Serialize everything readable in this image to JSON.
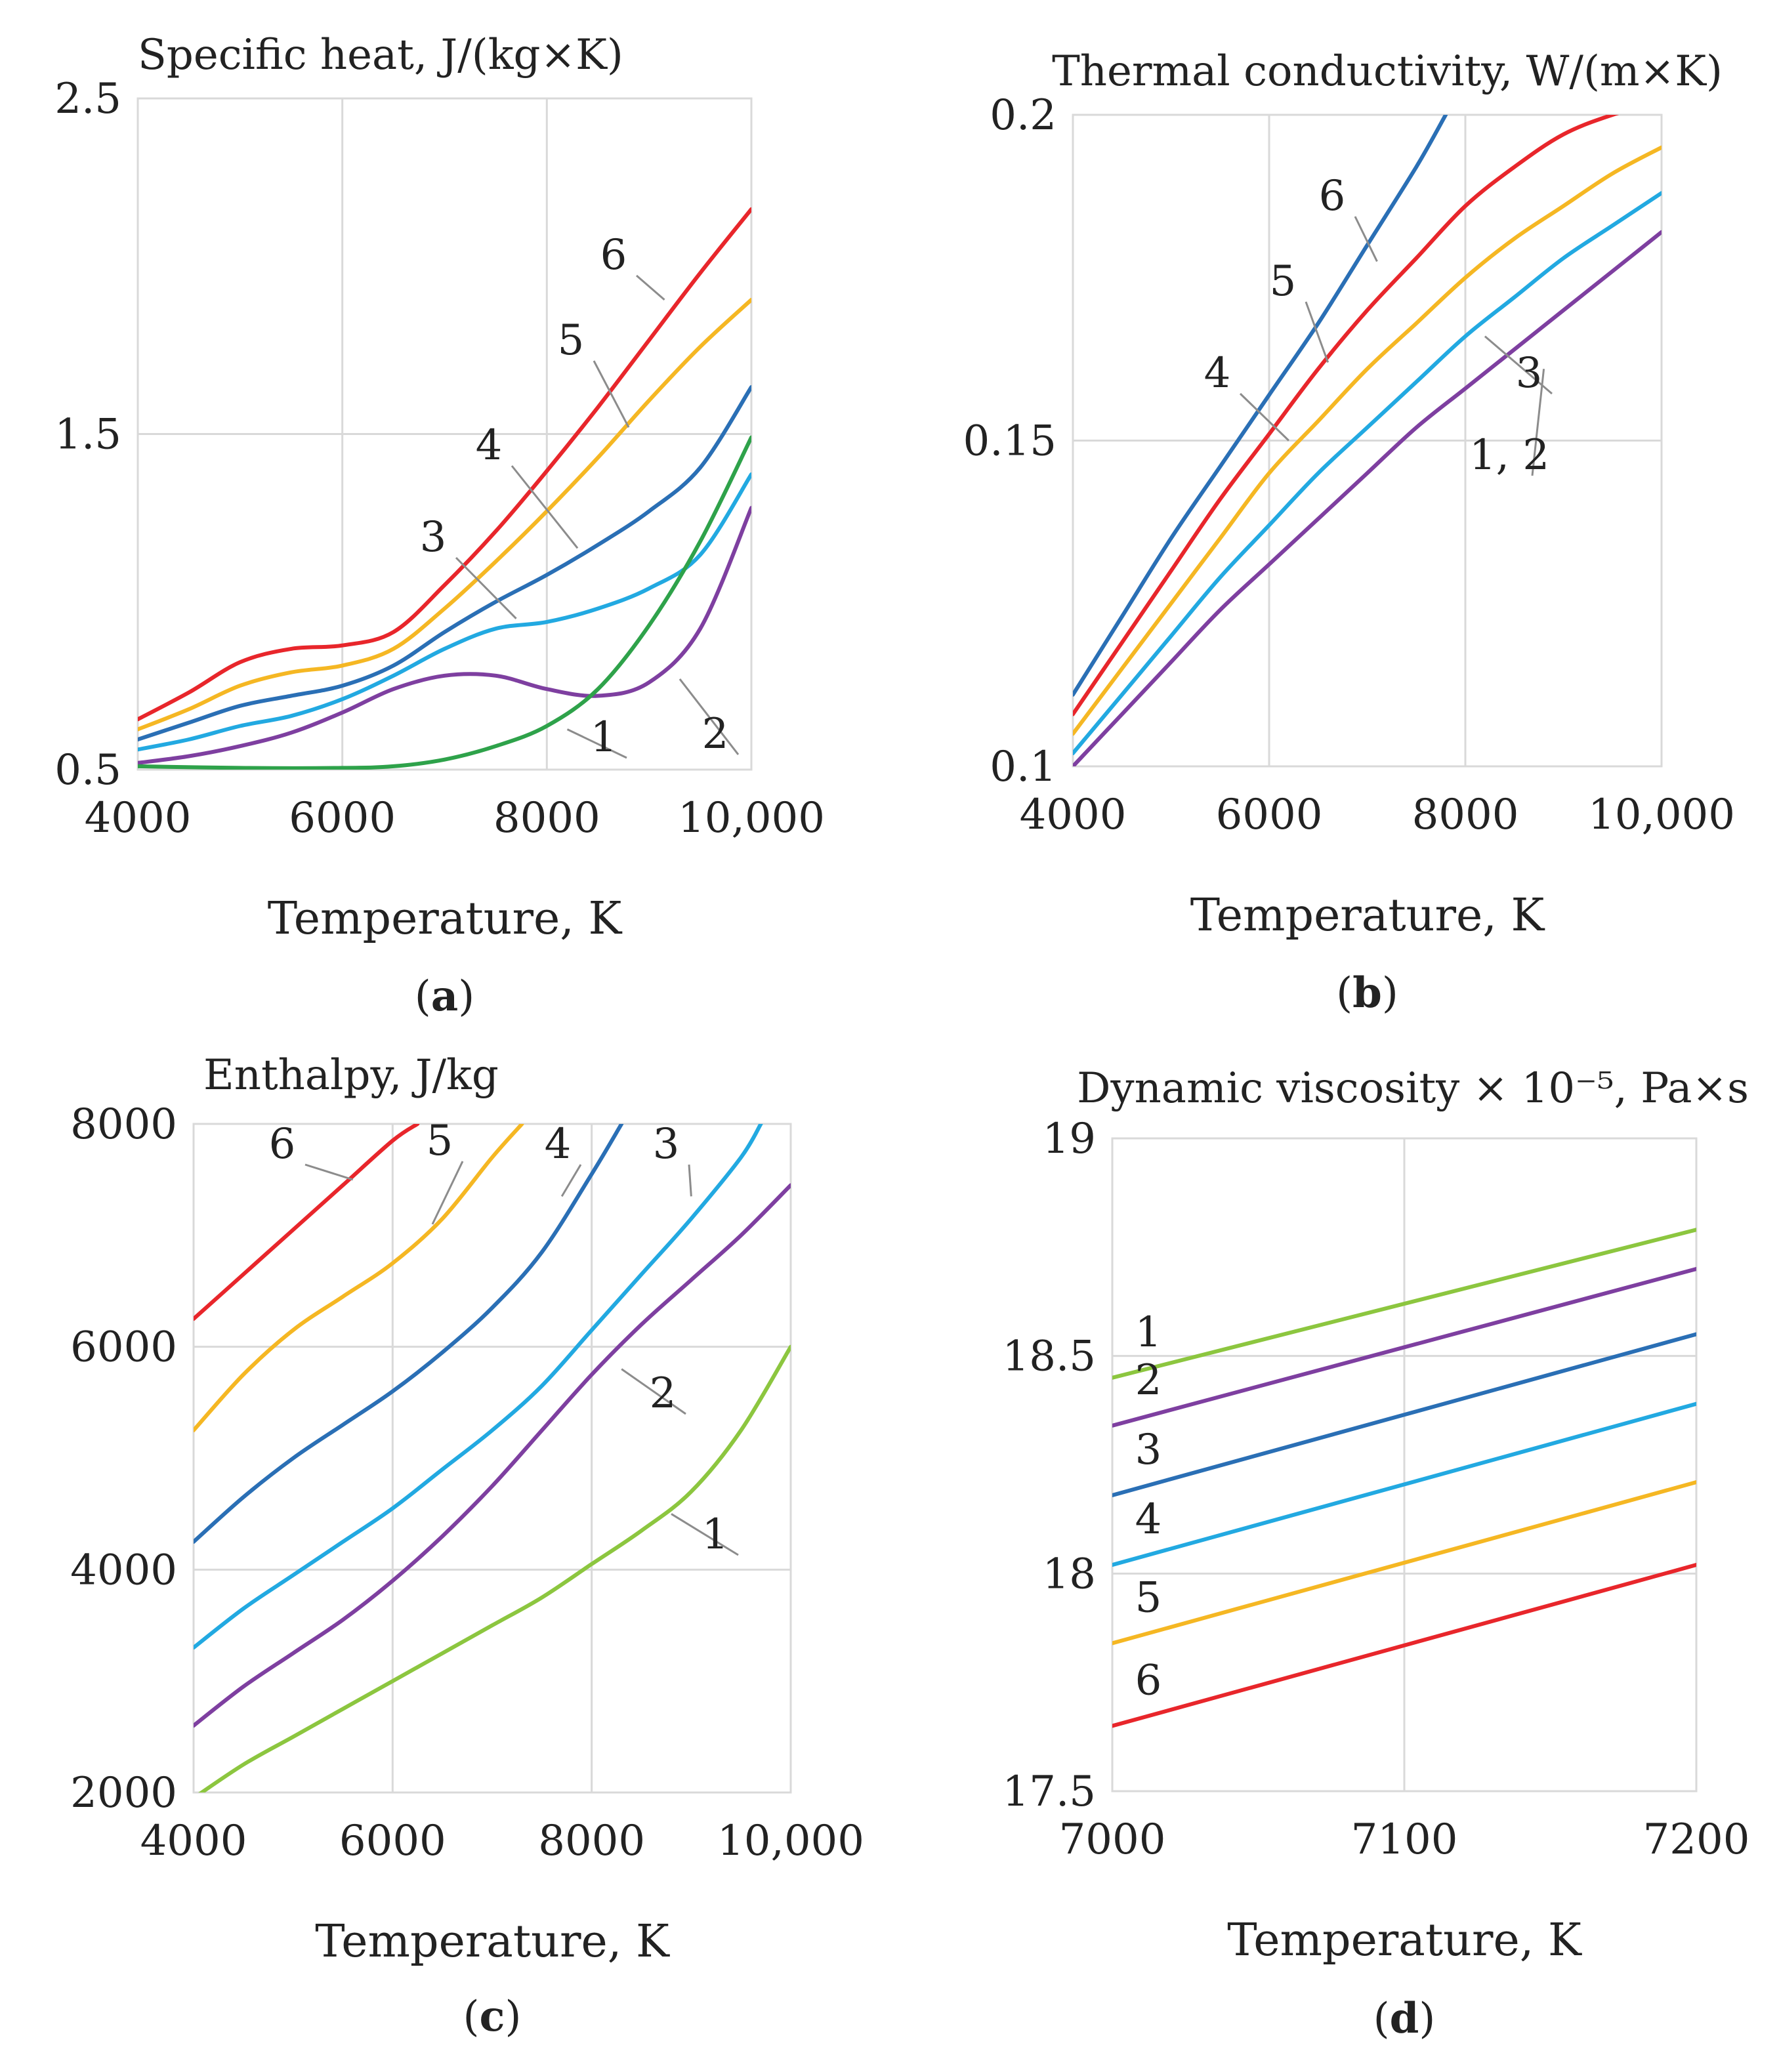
{
  "colors": {
    "red": "#e8262b",
    "yellow": "#f5b723",
    "dark_blue": "#2a6fb5",
    "light_blue": "#22a9e1",
    "purple": "#7e3fa0",
    "green": "#2ea24a",
    "light_green": "#8cc63f",
    "grid": "#d9d9d9"
  },
  "chart_data": [
    {
      "id": "a",
      "type": "line",
      "title": "Specific heat,   J/(kg×K)",
      "xlabel": "Temperature, K",
      "ylabel": "",
      "caption": {
        "open": "(",
        "letter": "a",
        "close": ")"
      },
      "xlim": [
        4000,
        10000
      ],
      "ylim": [
        0.5,
        2.5
      ],
      "xticks": [
        4000,
        6000,
        8000,
        10000
      ],
      "xtick_labels": [
        "4000",
        "6000",
        "8000",
        "10,000"
      ],
      "yticks": [
        0.5,
        1.5,
        2.5
      ],
      "ytick_labels": [
        "0.5",
        "1.5",
        "2.5"
      ],
      "grid": true,
      "series": [
        {
          "label": "6",
          "color": "#e8262b",
          "x": [
            4000,
            4500,
            5000,
            5500,
            6000,
            6500,
            7000,
            7500,
            8000,
            8500,
            9000,
            9500,
            10000
          ],
          "y": [
            0.65,
            0.73,
            0.82,
            0.86,
            0.87,
            0.91,
            1.05,
            1.21,
            1.39,
            1.58,
            1.78,
            1.98,
            2.17
          ]
        },
        {
          "label": "5",
          "color": "#f5b723",
          "x": [
            4000,
            4500,
            5000,
            5500,
            6000,
            6500,
            7000,
            7500,
            8000,
            8500,
            9000,
            9500,
            10000
          ],
          "y": [
            0.62,
            0.68,
            0.75,
            0.79,
            0.81,
            0.86,
            0.98,
            1.12,
            1.27,
            1.43,
            1.6,
            1.76,
            1.9
          ]
        },
        {
          "label": "4",
          "color": "#2a6fb5",
          "x": [
            4000,
            4500,
            5000,
            5500,
            6000,
            6500,
            7000,
            7500,
            8000,
            8500,
            9000,
            9500,
            10000
          ],
          "y": [
            0.59,
            0.64,
            0.69,
            0.72,
            0.75,
            0.81,
            0.91,
            1.0,
            1.08,
            1.17,
            1.27,
            1.4,
            1.64
          ]
        },
        {
          "label": "3",
          "color": "#22a9e1",
          "x": [
            4000,
            4500,
            5000,
            5500,
            6000,
            6500,
            7000,
            7500,
            8000,
            8500,
            9000,
            9500,
            10000
          ],
          "y": [
            0.56,
            0.59,
            0.63,
            0.66,
            0.71,
            0.78,
            0.86,
            0.92,
            0.94,
            0.98,
            1.04,
            1.14,
            1.38
          ]
        },
        {
          "label": "2",
          "color": "#7e3fa0",
          "x": [
            4000,
            4500,
            5000,
            5500,
            6000,
            6500,
            7000,
            7500,
            8000,
            8500,
            9000,
            9500,
            10000
          ],
          "y": [
            0.52,
            0.54,
            0.57,
            0.61,
            0.67,
            0.74,
            0.78,
            0.78,
            0.74,
            0.72,
            0.76,
            0.92,
            1.28
          ]
        },
        {
          "label": "1",
          "color": "#2ea24a",
          "x": [
            4000,
            5000,
            6000,
            6500,
            7000,
            7500,
            8000,
            8500,
            9000,
            9500,
            10000
          ],
          "y": [
            0.51,
            0.505,
            0.505,
            0.51,
            0.53,
            0.57,
            0.63,
            0.74,
            0.93,
            1.18,
            1.49
          ]
        }
      ],
      "annotations": [
        "6",
        "5",
        "4",
        "3",
        "2",
        "1"
      ]
    },
    {
      "id": "b",
      "type": "line",
      "title": "Thermal conductivity, W/(m×K)",
      "xlabel": "Temperature, K",
      "ylabel": "",
      "caption": {
        "open": "(",
        "letter": "b",
        "close": ")"
      },
      "xlim": [
        4000,
        10000
      ],
      "ylim": [
        0.1,
        0.2
      ],
      "xticks": [
        4000,
        6000,
        8000,
        10000
      ],
      "xtick_labels": [
        "4000",
        "6000",
        "8000",
        "10,000"
      ],
      "yticks": [
        0.1,
        0.15,
        0.2
      ],
      "ytick_labels": [
        "0.1",
        "0.15",
        "0.2"
      ],
      "grid": true,
      "series": [
        {
          "label": "6",
          "color": "#2a6fb5",
          "x": [
            4000,
            4500,
            5000,
            5500,
            6000,
            6500,
            7000,
            7500,
            7800
          ],
          "y": [
            0.111,
            0.123,
            0.135,
            0.146,
            0.157,
            0.168,
            0.18,
            0.192,
            0.2
          ]
        },
        {
          "label": "5",
          "color": "#e8262b",
          "x": [
            4000,
            4500,
            5000,
            5500,
            6000,
            6500,
            7000,
            7500,
            8000,
            8500,
            9000,
            9500,
            10000
          ],
          "y": [
            0.108,
            0.119,
            0.13,
            0.141,
            0.151,
            0.161,
            0.17,
            0.178,
            0.186,
            0.192,
            0.197,
            0.2,
            0.202
          ]
        },
        {
          "label": "4",
          "color": "#f5b723",
          "x": [
            4000,
            4500,
            5000,
            5500,
            6000,
            6500,
            7000,
            7500,
            8000,
            8500,
            9000,
            9500,
            10000
          ],
          "y": [
            0.105,
            0.115,
            0.125,
            0.135,
            0.145,
            0.153,
            0.161,
            0.168,
            0.175,
            0.181,
            0.186,
            0.191,
            0.195
          ]
        },
        {
          "label": "3",
          "color": "#22a9e1",
          "x": [
            4000,
            4500,
            5000,
            5500,
            6000,
            6500,
            7000,
            7500,
            8000,
            8500,
            9000,
            9500,
            10000
          ],
          "y": [
            0.102,
            0.111,
            0.12,
            0.129,
            0.137,
            0.145,
            0.152,
            0.159,
            0.166,
            0.172,
            0.178,
            0.183,
            0.188
          ]
        },
        {
          "label": "1, 2",
          "color": "#7e3fa0",
          "x": [
            4000,
            4500,
            5000,
            5500,
            6000,
            6500,
            7000,
            7500,
            8000,
            8500,
            9000,
            9500,
            10000
          ],
          "y": [
            0.1,
            0.108,
            0.116,
            0.124,
            0.131,
            0.138,
            0.145,
            0.152,
            0.158,
            0.164,
            0.17,
            0.176,
            0.182
          ]
        }
      ],
      "annotations": [
        "6",
        "5",
        "4",
        "3",
        "1, 2"
      ]
    },
    {
      "id": "c",
      "type": "line",
      "title": "Enthalpy,   J/kg",
      "xlabel": "Temperature, K",
      "ylabel": "",
      "caption": {
        "open": "(",
        "letter": "c",
        "close": ")"
      },
      "xlim": [
        4000,
        10000
      ],
      "ylim": [
        2000,
        8000
      ],
      "xticks": [
        4000,
        6000,
        8000,
        10000
      ],
      "xtick_labels": [
        "4000",
        "6000",
        "8000",
        "10,000"
      ],
      "yticks": [
        2000,
        4000,
        6000,
        8000
      ],
      "ytick_labels": [
        "2000",
        "4000",
        "6000",
        "8000"
      ],
      "grid": true,
      "series": [
        {
          "label": "6",
          "color": "#e8262b",
          "x": [
            4000,
            4500,
            5000,
            5500,
            6000,
            6250
          ],
          "y": [
            6250,
            6650,
            7050,
            7450,
            7850,
            8000
          ]
        },
        {
          "label": "5",
          "color": "#f5b723",
          "x": [
            4000,
            4500,
            5000,
            5500,
            6000,
            6500,
            7000,
            7300
          ],
          "y": [
            5250,
            5750,
            6150,
            6450,
            6750,
            7150,
            7700,
            8000
          ]
        },
        {
          "label": "4",
          "color": "#2a6fb5",
          "x": [
            4000,
            4500,
            5000,
            5500,
            6000,
            6500,
            7000,
            7500,
            8000,
            8300
          ],
          "y": [
            4250,
            4650,
            5000,
            5300,
            5600,
            5950,
            6350,
            6850,
            7550,
            8000
          ]
        },
        {
          "label": "3",
          "color": "#22a9e1",
          "x": [
            4000,
            4500,
            5000,
            5500,
            6000,
            6500,
            7000,
            7500,
            8000,
            8500,
            9000,
            9500,
            9700
          ],
          "y": [
            3300,
            3650,
            3950,
            4250,
            4550,
            4900,
            5250,
            5650,
            6150,
            6650,
            7150,
            7700,
            8000
          ]
        },
        {
          "label": "2",
          "color": "#7e3fa0",
          "x": [
            4000,
            4500,
            5000,
            5500,
            6000,
            6500,
            7000,
            7500,
            8000,
            8500,
            9000,
            9500,
            10000
          ],
          "y": [
            2600,
            2950,
            3250,
            3550,
            3900,
            4300,
            4750,
            5250,
            5750,
            6200,
            6600,
            7000,
            7450
          ]
        },
        {
          "label": "1",
          "color": "#8cc63f",
          "x": [
            4000,
            4500,
            5000,
            5500,
            6000,
            6500,
            7000,
            7500,
            8000,
            8500,
            9000,
            9500,
            10000
          ],
          "y": [
            1950,
            2250,
            2500,
            2750,
            3000,
            3250,
            3500,
            3750,
            4050,
            4350,
            4700,
            5250,
            6000
          ]
        }
      ],
      "annotations": [
        "6",
        "5",
        "4",
        "3",
        "2",
        "1"
      ]
    },
    {
      "id": "d",
      "type": "line",
      "title": "Dynamic viscosity × 10⁻⁵, Pa×s",
      "xlabel": "Temperature, K",
      "ylabel": "",
      "caption": {
        "open": "(",
        "letter": "d",
        "close": ")"
      },
      "xlim": [
        7000,
        7200
      ],
      "ylim": [
        17.5,
        19
      ],
      "xticks": [
        7000,
        7100,
        7200
      ],
      "xtick_labels": [
        "7000",
        "7100",
        "7200"
      ],
      "yticks": [
        17.5,
        18,
        18.5,
        19
      ],
      "ytick_labels": [
        "17.5",
        "18",
        "18.5",
        "19"
      ],
      "grid": true,
      "series": [
        {
          "label": "1",
          "color": "#8cc63f",
          "x": [
            7000,
            7200
          ],
          "y": [
            18.45,
            18.79
          ]
        },
        {
          "label": "2",
          "color": "#7e3fa0",
          "x": [
            7000,
            7200
          ],
          "y": [
            18.34,
            18.7
          ]
        },
        {
          "label": "3",
          "color": "#2a6fb5",
          "x": [
            7000,
            7200
          ],
          "y": [
            18.18,
            18.55
          ]
        },
        {
          "label": "4",
          "color": "#22a9e1",
          "x": [
            7000,
            7200
          ],
          "y": [
            18.02,
            18.39
          ]
        },
        {
          "label": "5",
          "color": "#f5b723",
          "x": [
            7000,
            7200
          ],
          "y": [
            17.84,
            18.21
          ]
        },
        {
          "label": "6",
          "color": "#e8262b",
          "x": [
            7000,
            7200
          ],
          "y": [
            17.65,
            18.02
          ]
        }
      ],
      "annotations": [
        "1",
        "2",
        "3",
        "4",
        "5",
        "6"
      ]
    }
  ]
}
